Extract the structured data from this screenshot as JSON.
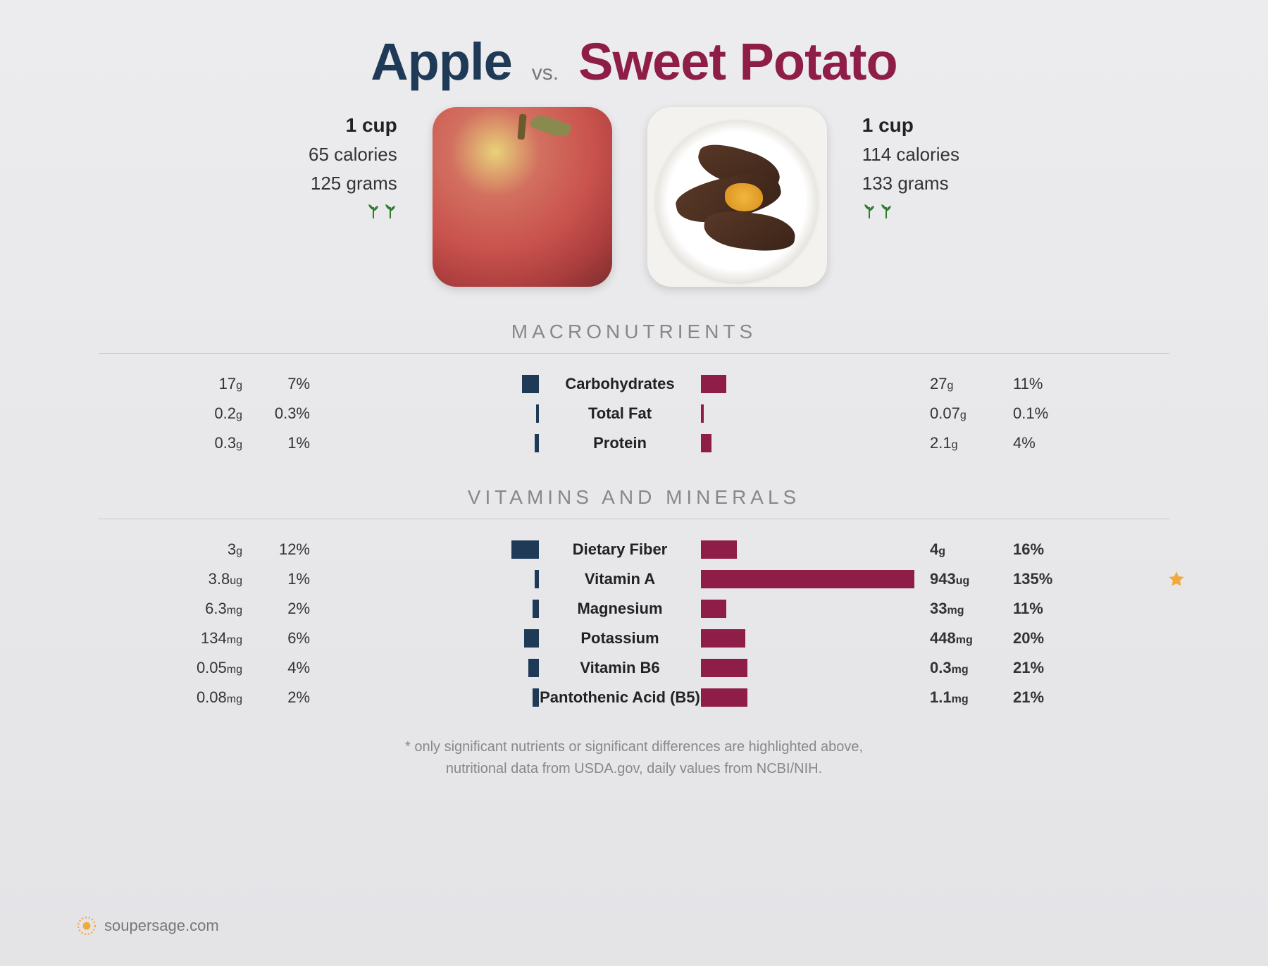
{
  "colors": {
    "leftAccent": "#1f3a57",
    "rightAccent": "#8e1e48",
    "star": "#f2a83c",
    "plant": "#2f7a2f"
  },
  "header": {
    "leftName": "Apple",
    "rightName": "Sweet Potato",
    "vs": "vs."
  },
  "left": {
    "serving": "1 cup",
    "calories": "65 calories",
    "grams": "125 grams",
    "plantIcons": 2
  },
  "right": {
    "serving": "1 cup",
    "calories": "114 calories",
    "grams": "133 grams",
    "plantIcons": 2
  },
  "barMaxWidthPx": 300,
  "sections": [
    {
      "title": "MACRONUTRIENTS",
      "rows": [
        {
          "name": "Carbohydrates",
          "left": {
            "amt": "17",
            "unit": "g",
            "pct": "7%",
            "barPct": 7
          },
          "right": {
            "amt": "27",
            "unit": "g",
            "pct": "11%",
            "barPct": 11
          }
        },
        {
          "name": "Total Fat",
          "left": {
            "amt": "0.2",
            "unit": "g",
            "pct": "0.3%",
            "barPct": 0.3
          },
          "right": {
            "amt": "0.07",
            "unit": "g",
            "pct": "0.1%",
            "barPct": 0.1
          }
        },
        {
          "name": "Protein",
          "left": {
            "amt": "0.3",
            "unit": "g",
            "pct": "1%",
            "barPct": 1
          },
          "right": {
            "amt": "2.1",
            "unit": "g",
            "pct": "4%",
            "barPct": 4
          }
        }
      ]
    },
    {
      "title": "VITAMINS AND MINERALS",
      "rows": [
        {
          "name": "Dietary Fiber",
          "left": {
            "amt": "3",
            "unit": "g",
            "pct": "12%",
            "barPct": 12
          },
          "right": {
            "amt": "4",
            "unit": "g",
            "pct": "16%",
            "barPct": 16,
            "bold": true
          }
        },
        {
          "name": "Vitamin A",
          "left": {
            "amt": "3.8",
            "unit": "ug",
            "pct": "1%",
            "barPct": 1
          },
          "right": {
            "amt": "943",
            "unit": "ug",
            "pct": "135%",
            "barPct": 100,
            "bold": true
          },
          "star": true
        },
        {
          "name": "Magnesium",
          "left": {
            "amt": "6.3",
            "unit": "mg",
            "pct": "2%",
            "barPct": 2
          },
          "right": {
            "amt": "33",
            "unit": "mg",
            "pct": "11%",
            "barPct": 11,
            "bold": true
          }
        },
        {
          "name": "Potassium",
          "left": {
            "amt": "134",
            "unit": "mg",
            "pct": "6%",
            "barPct": 6
          },
          "right": {
            "amt": "448",
            "unit": "mg",
            "pct": "20%",
            "barPct": 20,
            "bold": true
          }
        },
        {
          "name": "Vitamin B6",
          "left": {
            "amt": "0.05",
            "unit": "mg",
            "pct": "4%",
            "barPct": 4
          },
          "right": {
            "amt": "0.3",
            "unit": "mg",
            "pct": "21%",
            "barPct": 21,
            "bold": true
          }
        },
        {
          "name": "Pantothenic Acid (B5)",
          "left": {
            "amt": "0.08",
            "unit": "mg",
            "pct": "2%",
            "barPct": 2
          },
          "right": {
            "amt": "1.1",
            "unit": "mg",
            "pct": "21%",
            "barPct": 21,
            "bold": true
          }
        }
      ]
    }
  ],
  "footnote": {
    "line1": "* only significant nutrients or significant differences are highlighted above,",
    "line2": "nutritional data from USDA.gov, daily values from NCBI/NIH."
  },
  "brand": "soupersage.com"
}
